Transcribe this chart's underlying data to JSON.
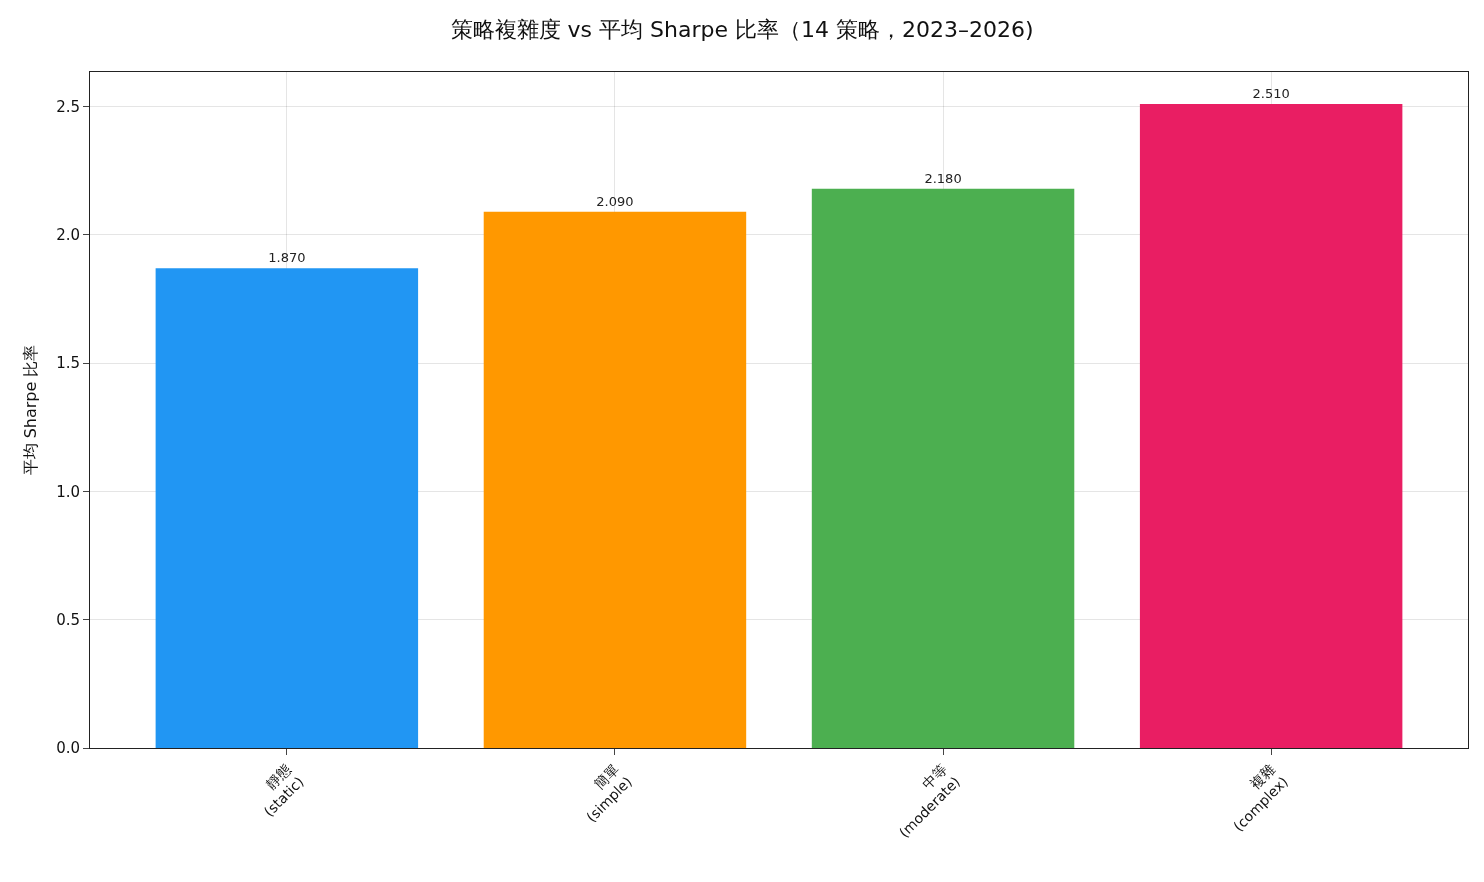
{
  "chart_data": {
    "type": "bar",
    "title": "策略複雜度 vs 平均 Sharpe 比率（14 策略，2023–2026)",
    "ylabel": "平均 Sharpe 比率",
    "categories": [
      "靜態\n(static)",
      "簡單\n(simple)",
      "中等\n(moderate)",
      "複雜\n(complex)"
    ],
    "values": [
      1.87,
      2.09,
      2.18,
      2.51
    ],
    "colors": [
      "#2196f3",
      "#ff9800",
      "#4caf50",
      "#e91e63"
    ],
    "value_labels": [
      "1.870",
      "2.090",
      "2.180",
      "2.510"
    ],
    "ylim": [
      0,
      2.635
    ],
    "yticks": [
      {
        "value": 0,
        "label": "0.0"
      },
      {
        "value": 0.5,
        "label": "0.5"
      },
      {
        "value": 1,
        "label": "1.0"
      },
      {
        "value": 1.5,
        "label": "1.5"
      },
      {
        "value": 2,
        "label": "2.0"
      },
      {
        "value": 2.5,
        "label": "2.5"
      }
    ],
    "grid": true
  }
}
